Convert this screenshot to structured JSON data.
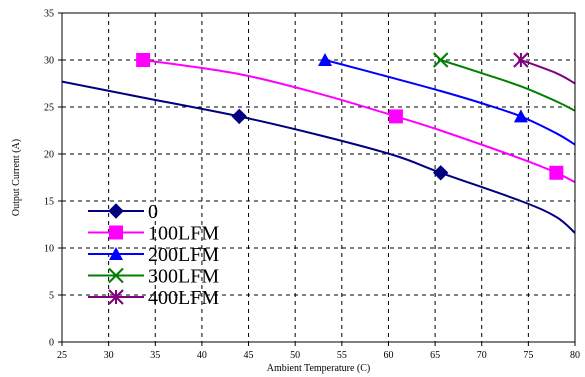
{
  "chart_data": {
    "type": "line",
    "title": "",
    "xlabel": "Ambient Temperature (C)",
    "ylabel": "Output Current (A)",
    "xlim": [
      25,
      80
    ],
    "ylim": [
      0,
      35
    ],
    "xticks": [
      25,
      30,
      35,
      40,
      45,
      50,
      55,
      60,
      65,
      70,
      75,
      80
    ],
    "yticks": [
      0,
      5,
      10,
      15,
      20,
      25,
      30,
      35
    ],
    "grid": "dashed",
    "legend_position": "lower-left",
    "series": [
      {
        "name": "0",
        "color": "#000080",
        "marker": "diamond",
        "x": [
          25,
          33.7,
          44.0,
          53.0,
          60.8,
          65.6,
          74.2,
          78.0,
          80
        ],
        "y": [
          27.7,
          26.0,
          24.0,
          21.9,
          19.8,
          18.0,
          15.0,
          13.3,
          11.6
        ],
        "marker_points": [
          {
            "x": 44.0,
            "y": 24.0
          },
          {
            "x": 65.6,
            "y": 18.0
          }
        ]
      },
      {
        "name": "100LFM",
        "color": "#ff00ff",
        "marker": "square",
        "x": [
          33.7,
          44.0,
          53.0,
          60.8,
          65.6,
          74.2,
          78.0,
          80
        ],
        "y": [
          30.0,
          28.5,
          26.3,
          24.0,
          22.5,
          19.5,
          18.0,
          17.0
        ],
        "marker_points": [
          {
            "x": 33.7,
            "y": 30.0
          },
          {
            "x": 60.8,
            "y": 24.0
          },
          {
            "x": 78.0,
            "y": 18.0
          }
        ]
      },
      {
        "name": "200LFM",
        "color": "#0000ff",
        "marker": "triangle",
        "x": [
          53.2,
          60.8,
          65.6,
          70.0,
          74.2,
          78.0,
          80
        ],
        "y": [
          30.0,
          28.0,
          26.7,
          25.4,
          24.0,
          22.2,
          21.0
        ],
        "marker_points": [
          {
            "x": 53.2,
            "y": 30.0
          },
          {
            "x": 74.2,
            "y": 24.0
          }
        ]
      },
      {
        "name": "300LFM",
        "color": "#008000",
        "marker": "x",
        "x": [
          65.6,
          70.0,
          74.2,
          78.0,
          80
        ],
        "y": [
          30.0,
          28.6,
          27.2,
          25.6,
          24.6
        ],
        "marker_points": [
          {
            "x": 65.6,
            "y": 30.0
          }
        ]
      },
      {
        "name": "400LFM",
        "color": "#800080",
        "marker": "star",
        "x": [
          74.2,
          78.0,
          80
        ],
        "y": [
          30.0,
          28.6,
          27.5
        ],
        "marker_points": [
          {
            "x": 74.2,
            "y": 30.0
          }
        ]
      }
    ]
  }
}
